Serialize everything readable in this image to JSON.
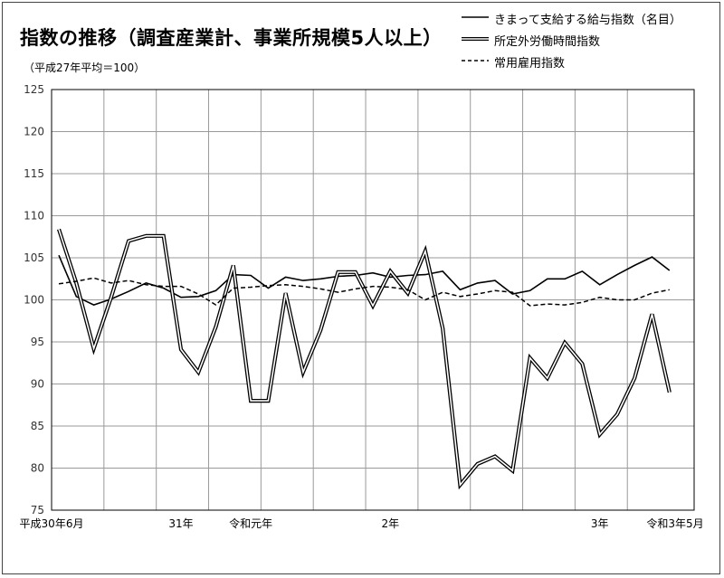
{
  "chart_data": {
    "type": "line",
    "title": "指数の推移（調査産業計、事業所規模5人以上）",
    "subtitle": "（平成27年平均＝100）",
    "ylim": [
      75,
      125
    ],
    "yticks": [
      75,
      80,
      85,
      90,
      95,
      100,
      105,
      110,
      115,
      120,
      125
    ],
    "grid": true,
    "legend_position": "top-right",
    "x_labels": [
      {
        "index": 0,
        "label": "平成30年6月"
      },
      {
        "index": 7,
        "label": "31年"
      },
      {
        "index": 11,
        "label": "令和元年"
      },
      {
        "index": 19,
        "label": "2年"
      },
      {
        "index": 31,
        "label": "3年"
      },
      {
        "index": 35,
        "label": "令和3年5月"
      }
    ],
    "series": [
      {
        "name": "きまって支給する給与指数（名目）",
        "style": "solid",
        "values": [
          105.3,
          100.4,
          99.4,
          100.1,
          101.0,
          102.0,
          101.4,
          100.3,
          100.4,
          101.1,
          103.0,
          102.9,
          101.4,
          102.7,
          102.3,
          102.5,
          102.8,
          102.9,
          103.2,
          102.7,
          102.9,
          103.0,
          103.4,
          101.2,
          102.0,
          102.3,
          100.7,
          101.1,
          102.5,
          102.5,
          103.4,
          101.8,
          103.0,
          104.1,
          105.1,
          103.5
        ]
      },
      {
        "name": "所定外労働時間指数",
        "style": "double",
        "values": [
          108.4,
          102.0,
          94.2,
          100.3,
          107.0,
          107.6,
          107.6,
          94.1,
          91.4,
          96.8,
          104.1,
          88.0,
          88.0,
          100.8,
          91.4,
          96.4,
          103.3,
          103.3,
          99.3,
          103.4,
          100.8,
          105.8,
          96.6,
          78.0,
          80.5,
          81.4,
          79.7,
          93.1,
          90.7,
          94.9,
          92.4,
          84.0,
          86.4,
          90.7,
          98.3,
          89.0
        ]
      },
      {
        "name": "常用雇用指数",
        "style": "dashed",
        "values": [
          101.9,
          102.2,
          102.6,
          102.0,
          102.3,
          101.8,
          101.6,
          101.6,
          100.7,
          99.4,
          101.4,
          101.5,
          101.7,
          101.8,
          101.6,
          101.3,
          100.9,
          101.3,
          101.6,
          101.5,
          101.2,
          100.0,
          100.9,
          100.4,
          100.7,
          101.1,
          100.9,
          99.3,
          99.5,
          99.4,
          99.7,
          100.3,
          100.0,
          100.0,
          100.8,
          101.2
        ]
      }
    ]
  }
}
